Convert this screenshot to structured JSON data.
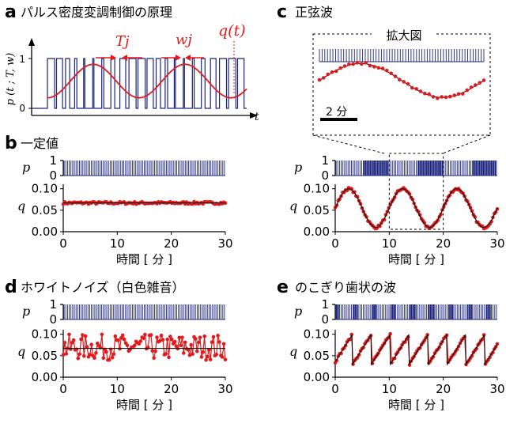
{
  "panels": {
    "a": {
      "letter": "a",
      "title": "パルス密度変調制御の原理",
      "ylabel": "p (t ; T, w)",
      "xlabel": "t",
      "yticks": [
        "0",
        "1"
      ],
      "annotations": {
        "period": "Tj",
        "width": "wj",
        "curve": "q(t)"
      }
    },
    "b": {
      "letter": "b",
      "title": "一定値"
    },
    "c": {
      "letter": "c",
      "title": "正弦波",
      "inset_title": "拡大図",
      "scalebar": "2 分"
    },
    "d": {
      "letter": "d",
      "title": "ホワイトノイズ（白色雑音）"
    },
    "e": {
      "letter": "e",
      "title": "のこぎり歯状の波"
    }
  },
  "axes_common": {
    "p_label": "p",
    "q_label": "q",
    "p_ticks": [
      "0",
      "1"
    ],
    "q_ticks": [
      "0.00",
      "0.05",
      "0.10"
    ],
    "x_ticks": [
      "0",
      "10",
      "20",
      "30"
    ],
    "xlabel": "時間 [ 分 ]"
  },
  "colors": {
    "pulse": "#1a237e",
    "signal": "#e31a1c",
    "fit": "#000000"
  },
  "chart_data": [
    {
      "panel": "a",
      "type": "line",
      "description_free": true,
      "series": [
        {
          "name": "q(t)",
          "kind": "sine",
          "ylim": [
            0,
            1
          ]
        }
      ]
    },
    {
      "panel": "b",
      "type": "line",
      "x_range": [
        0,
        30
      ],
      "q_range": [
        0,
        0.1
      ],
      "signal": {
        "kind": "constant",
        "value": 0.067
      }
    },
    {
      "panel": "c",
      "type": "line",
      "x_range": [
        0,
        30
      ],
      "q_range": [
        0,
        0.1
      ],
      "signal": {
        "kind": "sine",
        "mean": 0.055,
        "amplitude": 0.045,
        "period_min": 10,
        "phase_peak_min": 2.5
      },
      "inset_x_range": [
        10,
        20
      ]
    },
    {
      "panel": "d",
      "type": "line",
      "x_range": [
        0,
        30
      ],
      "q_range": [
        0,
        0.1
      ],
      "signal": {
        "kind": "white-noise",
        "mean": 0.067,
        "range": [
          0.04,
          0.1
        ]
      }
    },
    {
      "panel": "e",
      "type": "line",
      "x_range": [
        0,
        30
      ],
      "q_range": [
        0,
        0.1
      ],
      "signal": {
        "kind": "sawtooth",
        "min": 0.03,
        "max": 0.1,
        "period_min": 3.5
      }
    }
  ]
}
